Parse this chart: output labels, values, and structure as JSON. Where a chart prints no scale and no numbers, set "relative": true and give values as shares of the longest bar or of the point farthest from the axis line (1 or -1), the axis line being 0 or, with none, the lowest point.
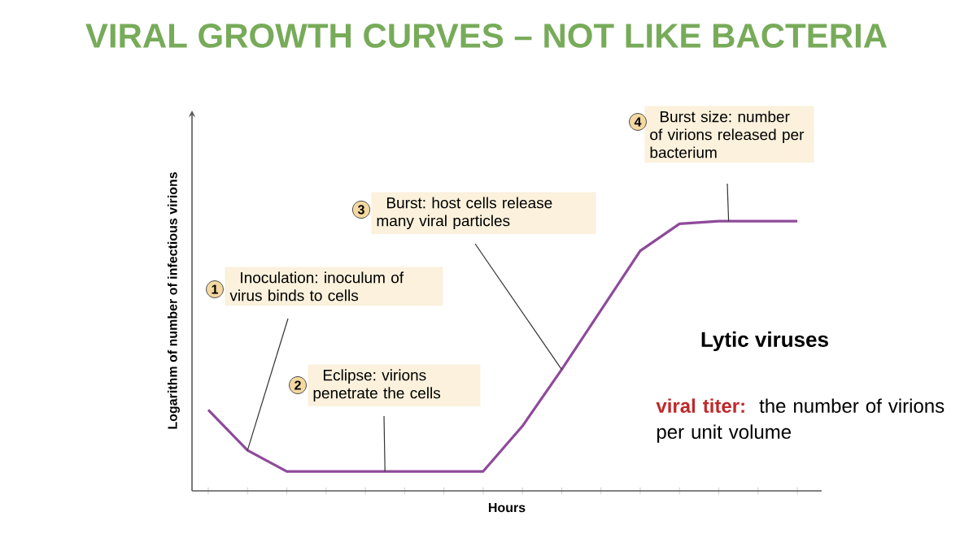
{
  "chart_data": {
    "type": "line",
    "title": "VIRAL GROWTH CURVES – NOT LIKE BACTERIA",
    "xlabel": "Hours",
    "ylabel": "Logarithm of number of infectious virions",
    "relative": true,
    "color": "#8e4a9a",
    "categories": [
      null,
      null,
      null,
      null,
      null,
      null,
      null,
      null,
      null,
      null,
      null,
      null,
      null,
      null,
      null,
      null
    ],
    "values": [
      0.3,
      0.15,
      0.072,
      0.072,
      0.072,
      0.072,
      0.072,
      0.072,
      0.24,
      0.45,
      0.67,
      0.89,
      0.99,
      1,
      1,
      1
    ],
    "annotations": [
      "1",
      "Inoculation: inoculum of virus binds to cells",
      "2",
      "Eclipse: virions penetrate the cells",
      "3",
      "Burst: host cells release many viral particles",
      "4",
      "Burst size: number of virions released per bacterium",
      "Lytic viruses",
      "viral titer:",
      "the number of virions per unit volume"
    ]
  }
}
